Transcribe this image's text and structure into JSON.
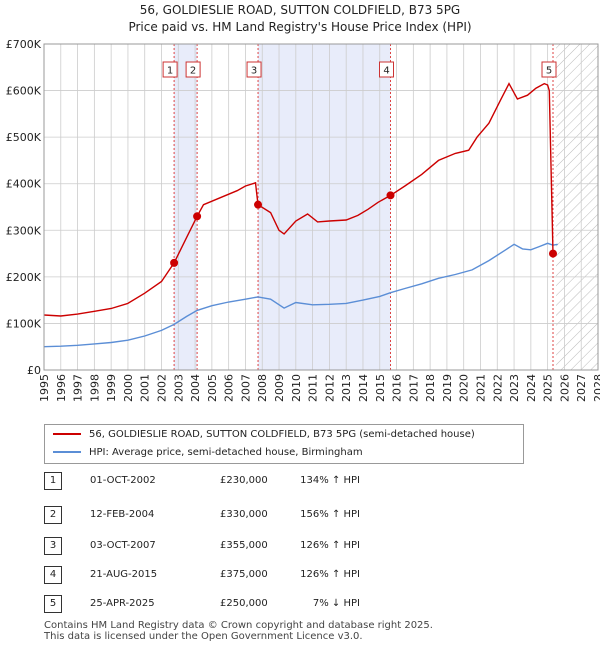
{
  "title_line1": "56, GOLDIESLIE ROAD, SUTTON COLDFIELD, B73 5PG",
  "title_line2": "Price paid vs. HM Land Registry's House Price Index (HPI)",
  "colors": {
    "property": "#cc0000",
    "hpi": "#5b8ed6",
    "band": "#e8ecfa",
    "grid": "#cccccc",
    "sale_line": "#dd4444"
  },
  "chart_data": {
    "type": "line",
    "title": "56, GOLDIESLIE ROAD, SUTTON COLDFIELD, B73 5PG — Price paid vs. HM Land Registry's House Price Index (HPI)",
    "xlim": [
      1995,
      2028
    ],
    "ylim": [
      0,
      700000
    ],
    "y_ticks": [
      0,
      100000,
      200000,
      300000,
      400000,
      500000,
      600000,
      700000
    ],
    "y_tick_labels": [
      "£0",
      "£100K",
      "£200K",
      "£300K",
      "£400K",
      "£500K",
      "£600K",
      "£700K"
    ],
    "x_ticks": [
      1995,
      1996,
      1997,
      1998,
      1999,
      2000,
      2001,
      2002,
      2003,
      2004,
      2005,
      2006,
      2007,
      2008,
      2009,
      2010,
      2011,
      2012,
      2013,
      2014,
      2015,
      2016,
      2017,
      2018,
      2019,
      2020,
      2021,
      2022,
      2023,
      2024,
      2025,
      2026,
      2027,
      2028
    ],
    "hatch_from": 2025.5,
    "shaded_bands": [
      [
        2002.75,
        2004.12
      ],
      [
        2007.75,
        2015.64
      ]
    ],
    "series": [
      {
        "name": "56, GOLDIESLIE ROAD, SUTTON COLDFIELD, B73 5PG (semi-detached house)",
        "points": [
          [
            1995.0,
            118000
          ],
          [
            1996.0,
            116000
          ],
          [
            1997.0,
            120000
          ],
          [
            1998.0,
            126000
          ],
          [
            1999.0,
            132000
          ],
          [
            2000.0,
            143000
          ],
          [
            2001.0,
            165000
          ],
          [
            2002.0,
            190000
          ],
          [
            2002.75,
            230000
          ],
          [
            2003.5,
            285000
          ],
          [
            2004.12,
            330000
          ],
          [
            2004.5,
            355000
          ],
          [
            2005.5,
            370000
          ],
          [
            2006.5,
            385000
          ],
          [
            2007.0,
            395000
          ],
          [
            2007.6,
            402000
          ],
          [
            2007.75,
            355000
          ],
          [
            2008.5,
            338000
          ],
          [
            2009.0,
            300000
          ],
          [
            2009.3,
            292000
          ],
          [
            2010.0,
            320000
          ],
          [
            2010.7,
            335000
          ],
          [
            2011.3,
            318000
          ],
          [
            2012.0,
            320000
          ],
          [
            2013.0,
            322000
          ],
          [
            2013.7,
            332000
          ],
          [
            2014.3,
            345000
          ],
          [
            2014.9,
            360000
          ],
          [
            2015.64,
            375000
          ],
          [
            2016.5,
            395000
          ],
          [
            2017.5,
            420000
          ],
          [
            2018.5,
            450000
          ],
          [
            2019.5,
            465000
          ],
          [
            2020.3,
            472000
          ],
          [
            2020.8,
            500000
          ],
          [
            2021.5,
            530000
          ],
          [
            2022.2,
            580000
          ],
          [
            2022.7,
            615000
          ],
          [
            2023.2,
            582000
          ],
          [
            2023.8,
            590000
          ],
          [
            2024.3,
            605000
          ],
          [
            2024.8,
            615000
          ],
          [
            2025.0,
            612000
          ],
          [
            2025.1,
            600000
          ],
          [
            2025.32,
            250000
          ]
        ]
      },
      {
        "name": "HPI: Average price, semi-detached house, Birmingham",
        "points": [
          [
            1995.0,
            50000
          ],
          [
            1996.0,
            51000
          ],
          [
            1997.0,
            53000
          ],
          [
            1998.0,
            56000
          ],
          [
            1999.0,
            59000
          ],
          [
            2000.0,
            64000
          ],
          [
            2001.0,
            73000
          ],
          [
            2002.0,
            85000
          ],
          [
            2002.75,
            98000
          ],
          [
            2003.5,
            115000
          ],
          [
            2004.12,
            128000
          ],
          [
            2005.0,
            138000
          ],
          [
            2006.0,
            146000
          ],
          [
            2007.0,
            152000
          ],
          [
            2007.75,
            157000
          ],
          [
            2008.5,
            152000
          ],
          [
            2009.3,
            133000
          ],
          [
            2010.0,
            145000
          ],
          [
            2011.0,
            140000
          ],
          [
            2012.0,
            141000
          ],
          [
            2013.0,
            143000
          ],
          [
            2014.0,
            150000
          ],
          [
            2015.0,
            158000
          ],
          [
            2015.64,
            166000
          ],
          [
            2016.5,
            175000
          ],
          [
            2017.5,
            185000
          ],
          [
            2018.5,
            197000
          ],
          [
            2019.5,
            205000
          ],
          [
            2020.5,
            215000
          ],
          [
            2021.5,
            235000
          ],
          [
            2022.5,
            258000
          ],
          [
            2023.0,
            270000
          ],
          [
            2023.5,
            260000
          ],
          [
            2024.0,
            258000
          ],
          [
            2024.5,
            265000
          ],
          [
            2025.0,
            272000
          ],
          [
            2025.32,
            268000
          ],
          [
            2025.6,
            270000
          ]
        ]
      }
    ],
    "sales": [
      {
        "n": "1",
        "date": "01-OCT-2002",
        "x": 2002.75,
        "price": 230000,
        "price_label": "£230,000",
        "hpi_label": "134% ↑ HPI"
      },
      {
        "n": "2",
        "date": "12-FEB-2004",
        "x": 2004.12,
        "price": 330000,
        "price_label": "£330,000",
        "hpi_label": "156% ↑ HPI"
      },
      {
        "n": "3",
        "date": "03-OCT-2007",
        "x": 2007.75,
        "price": 355000,
        "price_label": "£355,000",
        "hpi_label": "126% ↑ HPI"
      },
      {
        "n": "4",
        "date": "21-AUG-2015",
        "x": 2015.64,
        "price": 375000,
        "price_label": "£375,000",
        "hpi_label": "126% ↑ HPI"
      },
      {
        "n": "5",
        "date": "25-APR-2025",
        "x": 2025.32,
        "price": 250000,
        "price_label": "£250,000",
        "hpi_label": "7% ↓ HPI"
      }
    ]
  },
  "legend": {
    "property_label": "56, GOLDIESLIE ROAD, SUTTON COLDFIELD, B73 5PG (semi-detached house)",
    "hpi_label": "HPI: Average price, semi-detached house, Birmingham"
  },
  "footer_line1": "Contains HM Land Registry data © Crown copyright and database right 2025.",
  "footer_line2": "This data is licensed under the Open Government Licence v3.0."
}
